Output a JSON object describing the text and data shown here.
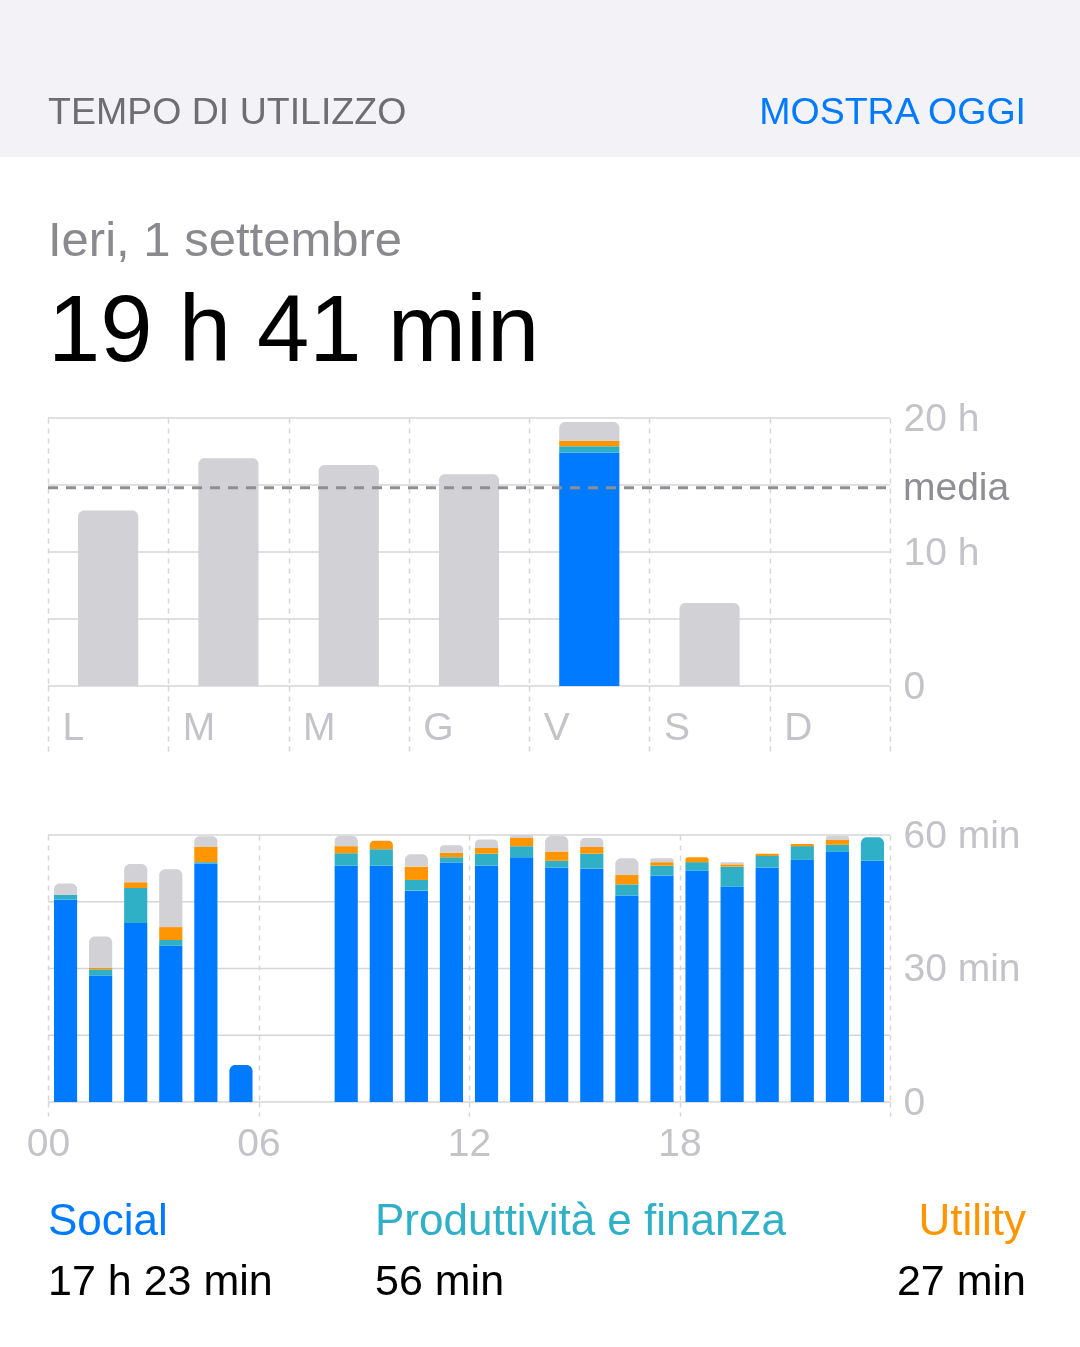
{
  "chart_data": [
    {
      "type": "bar",
      "title": "TEMPO DI UTILIZZO",
      "subtitle": "Ieri, 1 settembre",
      "annotations": [
        "MOSTRA OGGI",
        "19 h 41 min"
      ],
      "categories": [
        "L",
        "M",
        "M",
        "G",
        "V",
        "S",
        "D"
      ],
      "stacked": true,
      "series": [
        {
          "color": "#007aff",
          "values": [
            null,
            null,
            null,
            null,
            17.4,
            null,
            null
          ]
        },
        {
          "color": "#30b0c7",
          "values": [
            null,
            null,
            null,
            null,
            0.5,
            null,
            null
          ]
        },
        {
          "color": "#ff9500",
          "values": [
            null,
            null,
            null,
            null,
            0.4,
            null,
            null
          ]
        },
        {
          "color": "#d1d1d6",
          "values": [
            13.1,
            17.0,
            16.5,
            15.8,
            1.4,
            6.2,
            null
          ]
        }
      ],
      "ylim": [
        0,
        20
      ],
      "yticks": [
        0,
        {
          "value": 5,
          "label": null
        },
        {
          "value": 10,
          "label": "10 h"
        },
        {
          "value": 15,
          "label": null
        },
        {
          "value": 20,
          "label": "20 h"
        }
      ],
      "grid": true,
      "ref_lines": [
        {
          "axis": "y",
          "value": 14.8,
          "label": "media",
          "color": "#8e8e93",
          "line_style": "dashed"
        }
      ]
    },
    {
      "type": "bar",
      "stacked": true,
      "legend": "bottom",
      "grid": true,
      "annotations": [
        "17 h 23 min",
        "56 min",
        "27 min"
      ],
      "x": [
        0.5,
        1.5,
        2.5,
        3.5,
        4.5,
        5.5,
        6.5,
        7.5,
        8.5,
        9.5,
        10.5,
        11.5,
        12.5,
        13.5,
        14.5,
        15.5,
        16.5,
        17.5,
        18.5,
        19.5,
        20.5,
        21.5,
        22.5,
        23.5
      ],
      "xlim": [
        0,
        24
      ],
      "xticks": [
        {
          "value": 0,
          "label": "00"
        },
        {
          "value": 6,
          "label": "06"
        },
        {
          "value": 12,
          "label": "12"
        },
        {
          "value": 18,
          "label": "18"
        },
        {
          "value": 24,
          "label": null
        }
      ],
      "ylim": [
        0,
        60
      ],
      "yticks": [
        0,
        {
          "value": 15,
          "label": null
        },
        {
          "value": 30,
          "label": "30 min"
        },
        {
          "value": 45,
          "label": null
        },
        {
          "value": 60,
          "label": "60 min"
        }
      ],
      "series": [
        {
          "name": "Social",
          "color": "#007aff",
          "values": [
            45.5,
            28.4,
            40.2,
            35.1,
            53.6,
            8.3,
            null,
            null,
            53.1,
            53.1,
            47.5,
            53.8,
            53.1,
            55.0,
            52.7,
            52.5,
            46.4,
            50.9,
            52.0,
            48.4,
            52.7,
            54.4,
            56.2,
            54.2
          ]
        },
        {
          "name": "Produttività e finanza",
          "color": "#30b0c7",
          "values": [
            1.0,
            1.4,
            7.9,
            1.3,
            0.3,
            null,
            null,
            null,
            2.8,
            3.7,
            2.4,
            1.2,
            2.7,
            2.5,
            1.5,
            3.3,
            2.5,
            2.2,
            1.9,
            4.5,
            2.6,
            3.1,
            1.6,
            5.3
          ]
        },
        {
          "name": "Utility",
          "color": "#ff9500",
          "values": [
            null,
            0.4,
            1.3,
            2.9,
            3.4,
            null,
            null,
            null,
            1.6,
            1.9,
            3.0,
            1.0,
            1.3,
            1.8,
            2.1,
            1.5,
            2.1,
            0.8,
            1.1,
            0.5,
            0.5,
            0.5,
            1.1,
            null
          ]
        },
        {
          "color": "#d1d1d6",
          "values": [
            2.6,
            7.0,
            4.1,
            13.0,
            2.4,
            null,
            null,
            null,
            2.3,
            null,
            2.8,
            1.7,
            1.9,
            0.7,
            3.5,
            2.0,
            3.8,
            0.9,
            null,
            0.5,
            null,
            null,
            0.9,
            null
          ]
        }
      ]
    }
  ]
}
